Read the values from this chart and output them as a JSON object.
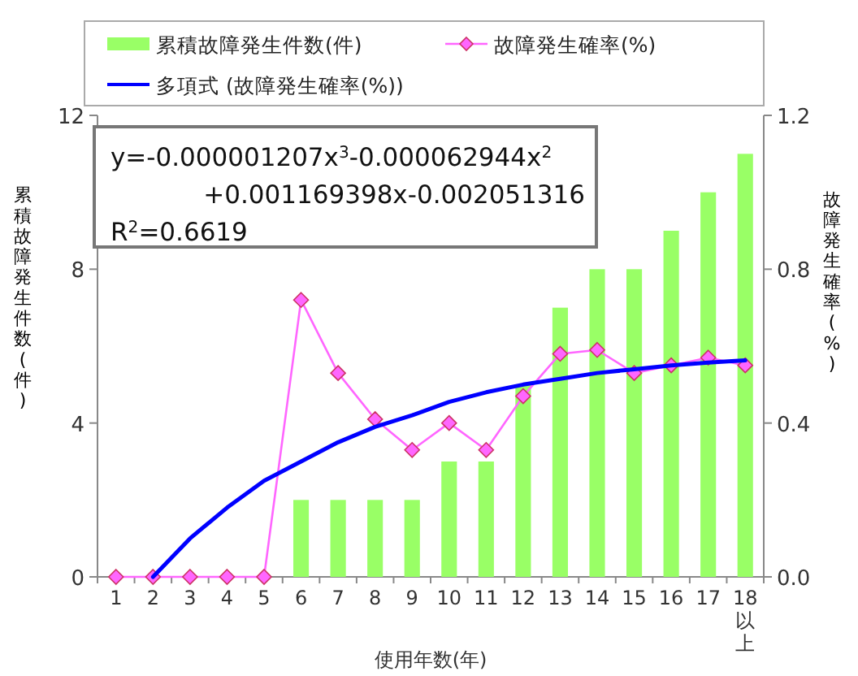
{
  "chart_data": {
    "type": "bar",
    "categories": [
      "1",
      "2",
      "3",
      "4",
      "5",
      "6",
      "7",
      "8",
      "9",
      "10",
      "11",
      "12",
      "13",
      "14",
      "15",
      "16",
      "17",
      "18以上"
    ],
    "series": [
      {
        "name": "累積故障発生件数(件)",
        "color": "#99ff66",
        "values": [
          0,
          0,
          0,
          0,
          0,
          2,
          2,
          2,
          2,
          3,
          3,
          5,
          7,
          8,
          8,
          9,
          10,
          11
        ]
      },
      {
        "name": "故障発生確率(%)",
        "type": "line",
        "axis": "y2",
        "marker": "diamond",
        "color": "#ff66ff",
        "values": [
          0,
          0,
          0,
          0,
          0,
          0.72,
          0.53,
          0.41,
          0.33,
          0.4,
          0.33,
          0.47,
          0.58,
          0.59,
          0.53,
          0.55,
          0.57,
          0.55
        ]
      },
      {
        "name": "多項式 (故障発生確率(%))",
        "type": "line",
        "axis": "y2",
        "marker": "none",
        "color": "#0000ff",
        "values": [
          null,
          0,
          0.1,
          0.18,
          0.25,
          0.3,
          0.35,
          0.39,
          0.42,
          0.455,
          0.48,
          0.5,
          0.515,
          0.53,
          0.54,
          0.55,
          0.557,
          0.563
        ]
      }
    ],
    "ylim": [
      0,
      12
    ],
    "yticks": [
      0,
      4,
      8,
      12
    ],
    "y2lim": [
      0,
      1.2
    ],
    "y2ticks": [
      {
        "value": 0,
        "label": "0.0"
      },
      0.4,
      0.8,
      1.2
    ],
    "xlabel": "使用年数(年)",
    "ylabel": "累積故障発生件数(件)",
    "y2label": "故障発生確率(%)",
    "legend": "top",
    "annotations": [
      "y=-0.000001207x$^{3}$-0.000062944x$^{2}$",
      "+0.001169398x-0.002051316",
      "R$^{2}$=0.6619"
    ]
  }
}
